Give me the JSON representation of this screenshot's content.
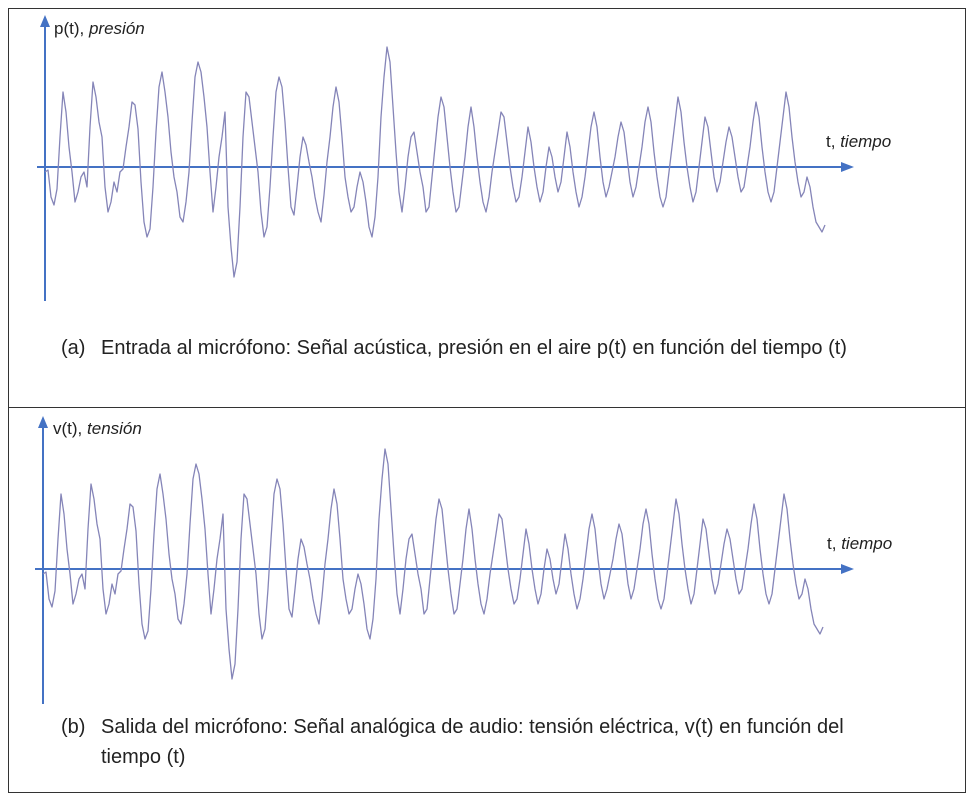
{
  "colors": {
    "axis": "#4472C4",
    "signal": "#8585B8",
    "border": "#333333"
  },
  "panel_a": {
    "y_label": "p(t),",
    "y_label_italic": "presión",
    "x_label": "t,",
    "x_label_italic": "tiempo",
    "caption_letter": "(a)",
    "caption_text": "Entrada al micrófono: Señal acústica, presión en el aire p(t) en función del tiempo (t)"
  },
  "panel_b": {
    "y_label": "v(t),",
    "y_label_italic": "tensión",
    "x_label": "t,",
    "x_label_italic": "tiempo",
    "caption_letter": "(b)",
    "caption_text_line1": "Salida del micrófono: Señal analógica de audio: tensión eléctrica, v(t) en función del",
    "caption_text_line2": "tiempo (t)"
  }
}
